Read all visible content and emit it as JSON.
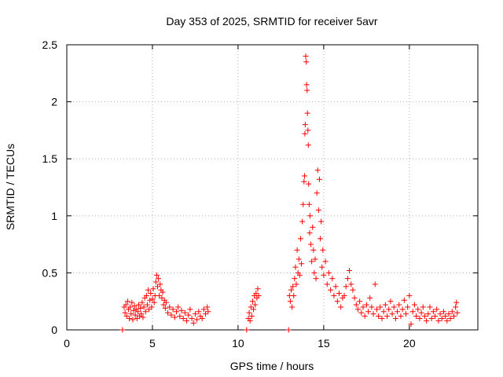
{
  "chart_data": {
    "type": "scatter",
    "title": "Day 353 of 2025, SRMTID for receiver 5avr",
    "xlabel": "GPS time / hours",
    "ylabel": "SRMTID / TECUs",
    "xlim": [
      0,
      24
    ],
    "ylim": [
      0,
      2.5
    ],
    "xticks": [
      0,
      5,
      10,
      15,
      20
    ],
    "yticks": [
      0,
      0.5,
      1,
      1.5,
      2,
      2.5
    ],
    "xtick_labels": [
      "0",
      "5",
      "10",
      "15",
      "20"
    ],
    "ytick_labels": [
      "0",
      "0.5",
      "1",
      "1.5",
      "2",
      "2.5"
    ],
    "grid": true,
    "marker": "+",
    "series": [
      {
        "name": "SRMTID",
        "color": "#ff0000",
        "points": [
          [
            3.25,
            0.0
          ],
          [
            3.35,
            0.2
          ],
          [
            3.4,
            0.15
          ],
          [
            3.45,
            0.22
          ],
          [
            3.5,
            0.12
          ],
          [
            3.55,
            0.25
          ],
          [
            3.6,
            0.18
          ],
          [
            3.65,
            0.1
          ],
          [
            3.7,
            0.2
          ],
          [
            3.75,
            0.14
          ],
          [
            3.8,
            0.24
          ],
          [
            3.85,
            0.09
          ],
          [
            3.9,
            0.17
          ],
          [
            3.95,
            0.21
          ],
          [
            4.0,
            0.13
          ],
          [
            4.05,
            0.18
          ],
          [
            4.1,
            0.1
          ],
          [
            4.15,
            0.16
          ],
          [
            4.2,
            0.22
          ],
          [
            4.25,
            0.12
          ],
          [
            4.3,
            0.19
          ],
          [
            4.35,
            0.14
          ],
          [
            4.4,
            0.24
          ],
          [
            4.45,
            0.11
          ],
          [
            4.5,
            0.2
          ],
          [
            4.55,
            0.28
          ],
          [
            4.6,
            0.16
          ],
          [
            4.65,
            0.3
          ],
          [
            4.7,
            0.22
          ],
          [
            4.75,
            0.35
          ],
          [
            4.8,
            0.18
          ],
          [
            4.85,
            0.26
          ],
          [
            4.9,
            0.32
          ],
          [
            4.95,
            0.2
          ],
          [
            5.0,
            0.27
          ],
          [
            5.05,
            0.36
          ],
          [
            5.1,
            0.24
          ],
          [
            5.15,
            0.3
          ],
          [
            5.2,
            0.42
          ],
          [
            5.25,
            0.48
          ],
          [
            5.3,
            0.38
          ],
          [
            5.35,
            0.45
          ],
          [
            5.4,
            0.3
          ],
          [
            5.45,
            0.4
          ],
          [
            5.5,
            0.35
          ],
          [
            5.55,
            0.28
          ],
          [
            5.6,
            0.33
          ],
          [
            5.65,
            0.22
          ],
          [
            5.7,
            0.26
          ],
          [
            5.75,
            0.19
          ],
          [
            5.8,
            0.24
          ],
          [
            5.9,
            0.15
          ],
          [
            6.0,
            0.2
          ],
          [
            6.1,
            0.13
          ],
          [
            6.2,
            0.18
          ],
          [
            6.3,
            0.11
          ],
          [
            6.4,
            0.16
          ],
          [
            6.5,
            0.2
          ],
          [
            6.6,
            0.12
          ],
          [
            6.7,
            0.17
          ],
          [
            6.8,
            0.1
          ],
          [
            6.9,
            0.15
          ],
          [
            7.0,
            0.08
          ],
          [
            7.1,
            0.13
          ],
          [
            7.2,
            0.18
          ],
          [
            7.3,
            0.1
          ],
          [
            7.4,
            0.06
          ],
          [
            7.5,
            0.14
          ],
          [
            7.6,
            0.09
          ],
          [
            7.7,
            0.16
          ],
          [
            7.8,
            0.12
          ],
          [
            7.9,
            0.1
          ],
          [
            8.0,
            0.18
          ],
          [
            8.1,
            0.14
          ],
          [
            8.2,
            0.2
          ],
          [
            8.25,
            0.16
          ],
          [
            10.5,
            0.0
          ],
          [
            10.6,
            0.1
          ],
          [
            10.65,
            0.15
          ],
          [
            10.7,
            0.08
          ],
          [
            10.75,
            0.2
          ],
          [
            10.8,
            0.12
          ],
          [
            10.85,
            0.25
          ],
          [
            10.9,
            0.18
          ],
          [
            10.95,
            0.3
          ],
          [
            11.0,
            0.22
          ],
          [
            11.05,
            0.32
          ],
          [
            11.1,
            0.28
          ],
          [
            11.15,
            0.36
          ],
          [
            11.2,
            0.3
          ],
          [
            12.95,
            0.0
          ],
          [
            13.0,
            0.3
          ],
          [
            13.05,
            0.25
          ],
          [
            13.1,
            0.35
          ],
          [
            13.15,
            0.2
          ],
          [
            13.2,
            0.38
          ],
          [
            13.25,
            0.3
          ],
          [
            13.3,
            0.45
          ],
          [
            13.35,
            0.55
          ],
          [
            13.4,
            0.4
          ],
          [
            13.45,
            0.7
          ],
          [
            13.5,
            0.5
          ],
          [
            13.55,
            0.62
          ],
          [
            13.6,
            0.48
          ],
          [
            13.65,
            0.8
          ],
          [
            13.7,
            0.58
          ],
          [
            13.75,
            0.95
          ],
          [
            13.8,
            1.1
          ],
          [
            13.85,
            1.3
          ],
          [
            13.88,
            1.35
          ],
          [
            13.9,
            1.72
          ],
          [
            13.92,
            1.8
          ],
          [
            13.95,
            2.4
          ],
          [
            13.98,
            2.35
          ],
          [
            14.0,
            2.15
          ],
          [
            14.03,
            2.1
          ],
          [
            14.05,
            1.9
          ],
          [
            14.08,
            1.75
          ],
          [
            14.1,
            1.62
          ],
          [
            14.12,
            1.28
          ],
          [
            14.15,
            1.1
          ],
          [
            14.18,
            0.85
          ],
          [
            14.2,
            1.0
          ],
          [
            14.25,
            0.75
          ],
          [
            14.3,
            0.6
          ],
          [
            14.35,
            0.9
          ],
          [
            14.4,
            0.7
          ],
          [
            14.45,
            0.5
          ],
          [
            14.5,
            0.62
          ],
          [
            14.55,
            0.45
          ],
          [
            14.6,
            1.2
          ],
          [
            14.65,
            1.4
          ],
          [
            14.7,
            1.05
          ],
          [
            14.75,
            1.32
          ],
          [
            14.8,
            0.8
          ],
          [
            14.85,
            0.95
          ],
          [
            14.9,
            0.55
          ],
          [
            14.95,
            0.7
          ],
          [
            15.0,
            0.48
          ],
          [
            15.1,
            0.6
          ],
          [
            15.2,
            0.4
          ],
          [
            15.3,
            0.5
          ],
          [
            15.4,
            0.35
          ],
          [
            15.5,
            0.45
          ],
          [
            15.6,
            0.3
          ],
          [
            15.7,
            0.38
          ],
          [
            15.8,
            0.25
          ],
          [
            15.9,
            0.32
          ],
          [
            16.0,
            0.2
          ],
          [
            16.1,
            0.28
          ],
          [
            16.2,
            0.3
          ],
          [
            16.3,
            0.38
          ],
          [
            16.4,
            0.45
          ],
          [
            16.5,
            0.52
          ],
          [
            16.6,
            0.4
          ],
          [
            16.7,
            0.35
          ],
          [
            16.8,
            0.28
          ],
          [
            16.9,
            0.22
          ],
          [
            17.0,
            0.18
          ],
          [
            17.1,
            0.25
          ],
          [
            17.2,
            0.15
          ],
          [
            17.3,
            0.2
          ],
          [
            17.4,
            0.12
          ],
          [
            17.5,
            0.22
          ],
          [
            17.6,
            0.16
          ],
          [
            17.7,
            0.28
          ],
          [
            17.8,
            0.2
          ],
          [
            17.9,
            0.14
          ],
          [
            18.0,
            0.4
          ],
          [
            18.1,
            0.18
          ],
          [
            18.2,
            0.12
          ],
          [
            18.3,
            0.2
          ],
          [
            18.4,
            0.1
          ],
          [
            18.5,
            0.16
          ],
          [
            18.6,
            0.22
          ],
          [
            18.7,
            0.12
          ],
          [
            18.8,
            0.18
          ],
          [
            18.9,
            0.25
          ],
          [
            19.0,
            0.14
          ],
          [
            19.1,
            0.2
          ],
          [
            19.2,
            0.1
          ],
          [
            19.3,
            0.16
          ],
          [
            19.4,
            0.22
          ],
          [
            19.5,
            0.12
          ],
          [
            19.6,
            0.18
          ],
          [
            19.7,
            0.26
          ],
          [
            19.8,
            0.14
          ],
          [
            19.9,
            0.2
          ],
          [
            20.0,
            0.3
          ],
          [
            20.1,
            0.05
          ],
          [
            20.2,
            0.16
          ],
          [
            20.3,
            0.22
          ],
          [
            20.4,
            0.12
          ],
          [
            20.5,
            0.18
          ],
          [
            20.6,
            0.1
          ],
          [
            20.7,
            0.15
          ],
          [
            20.8,
            0.2
          ],
          [
            20.9,
            0.12
          ],
          [
            21.0,
            0.08
          ],
          [
            21.1,
            0.14
          ],
          [
            21.2,
            0.2
          ],
          [
            21.3,
            0.1
          ],
          [
            21.4,
            0.16
          ],
          [
            21.5,
            0.12
          ],
          [
            21.6,
            0.18
          ],
          [
            21.7,
            0.08
          ],
          [
            21.8,
            0.14
          ],
          [
            21.9,
            0.1
          ],
          [
            22.0,
            0.16
          ],
          [
            22.1,
            0.12
          ],
          [
            22.2,
            0.08
          ],
          [
            22.3,
            0.14
          ],
          [
            22.4,
            0.1
          ],
          [
            22.5,
            0.16
          ],
          [
            22.6,
            0.12
          ],
          [
            22.7,
            0.2
          ],
          [
            22.75,
            0.24
          ],
          [
            22.8,
            0.15
          ]
        ]
      }
    ]
  }
}
